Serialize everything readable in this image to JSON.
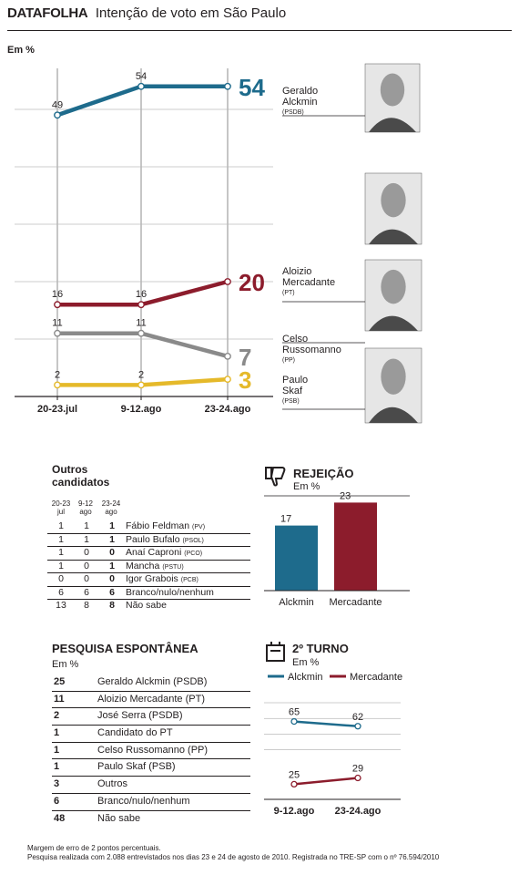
{
  "header": {
    "brand": "DATAFOLHA",
    "title": "Intenção de voto em São Paulo"
  },
  "colors": {
    "alckmin": "#1e6b8c",
    "mercadante": "#8c1c2c",
    "russomanno": "#8a8a8a",
    "skaf": "#e5b92a"
  },
  "chart_data": [
    {
      "type": "line",
      "unit_label": "Em %",
      "categories": [
        "20-23.jul",
        "9-12.ago",
        "23-24.ago"
      ],
      "ylim": [
        0,
        60
      ],
      "series": [
        {
          "name": "Geraldo Alckmin",
          "party": "(PSDB)",
          "values": [
            49,
            54,
            54
          ],
          "final_label": "54",
          "color_key": "alckmin"
        },
        {
          "name": "Aloizio Mercadante",
          "party": "(PT)",
          "values": [
            16,
            16,
            20
          ],
          "final_label": "20",
          "color_key": "mercadante"
        },
        {
          "name": "Celso Russomanno",
          "party": "(PP)",
          "values": [
            11,
            11,
            7
          ],
          "final_label": "7",
          "color_key": "russomanno"
        },
        {
          "name": "Paulo Skaf",
          "party": "(PSB)",
          "values": [
            2,
            2,
            3
          ],
          "final_label": "3",
          "color_key": "skaf"
        }
      ],
      "series_label_lines": [
        [
          "Geraldo",
          "Alckmin"
        ],
        [
          "Aloizio",
          "Mercadante"
        ],
        [
          "Celso",
          "Russomanno"
        ],
        [
          "Paulo",
          "Skaf"
        ]
      ]
    },
    {
      "type": "table",
      "title_lines": [
        "Outros",
        "candidatos"
      ],
      "columns": [
        [
          "20-23",
          "jul"
        ],
        [
          "9-12",
          "ago"
        ],
        [
          "23-24",
          "ago"
        ]
      ],
      "rows": [
        {
          "v": [
            "1",
            "1",
            "1"
          ],
          "name": "Fábio Feldman",
          "party": "(PV)"
        },
        {
          "v": [
            "1",
            "1",
            "1"
          ],
          "name": "Paulo Bufalo",
          "party": "(PSOL)"
        },
        {
          "v": [
            "1",
            "0",
            "0"
          ],
          "name": "Anaí Caproni",
          "party": "(PCO)"
        },
        {
          "v": [
            "1",
            "0",
            "1"
          ],
          "name": "Mancha",
          "party": "(PSTU)"
        },
        {
          "v": [
            "0",
            "0",
            "0"
          ],
          "name": "Igor Grabois",
          "party": "(PCB)"
        },
        {
          "v": [
            "6",
            "6",
            "6"
          ],
          "name": "Branco/nulo/nenhum",
          "party": ""
        },
        {
          "v": [
            "13",
            "8",
            "8"
          ],
          "name": "Não sabe",
          "party": ""
        }
      ]
    },
    {
      "type": "bar",
      "title": "REJEIÇÃO",
      "unit_label": "Em %",
      "categories": [
        "Alckmin",
        "Mercadante"
      ],
      "values": [
        17,
        23
      ],
      "color_keys": [
        "alckmin",
        "mercadante"
      ]
    },
    {
      "type": "table",
      "title": "PESQUISA ESPONTÂNEA",
      "unit_label": "Em %",
      "rows": [
        {
          "value": "25",
          "label": "Geraldo Alckmin (PSDB)"
        },
        {
          "value": "11",
          "label": "Aloizio Mercadante (PT)"
        },
        {
          "value": "2",
          "label": "José Serra (PSDB)"
        },
        {
          "value": "1",
          "label": "Candidato do PT"
        },
        {
          "value": "1",
          "label": "Celso Russomanno (PP)"
        },
        {
          "value": "1",
          "label": "Paulo Skaf (PSB)"
        },
        {
          "value": "3",
          "label": "Outros"
        },
        {
          "value": "6",
          "label": "Branco/nulo/nenhum"
        },
        {
          "value": "48",
          "label": "Não sabe"
        }
      ]
    },
    {
      "type": "line",
      "title": "2º TURNO",
      "unit_label": "Em %",
      "categories": [
        "9-12.ago",
        "23-24.ago"
      ],
      "ylim": [
        20,
        70
      ],
      "series": [
        {
          "name": "Alckmin",
          "values": [
            65,
            62
          ],
          "color_key": "alckmin"
        },
        {
          "name": "Mercadante",
          "values": [
            25,
            29
          ],
          "color_key": "mercadante"
        }
      ]
    }
  ],
  "footer": {
    "line1": "Margem de erro de 2 pontos percentuais.",
    "line2": "Pesquisa realizada com 2.088 entrevistados nos dias 23 e 24 de agosto de 2010. Registrada no TRE-SP com o nº 76.594/2010"
  }
}
